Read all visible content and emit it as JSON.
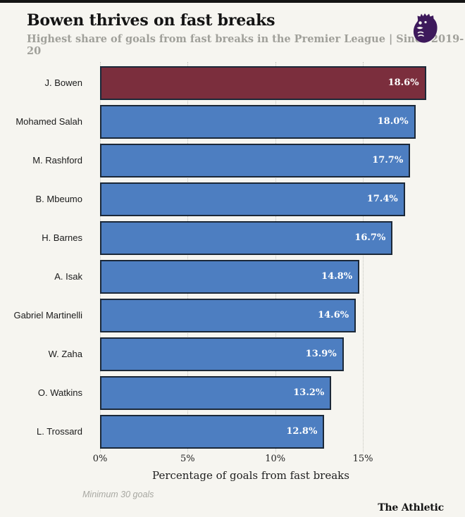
{
  "page": {
    "background_color": "#f6f5f0",
    "top_border_color": "#141414"
  },
  "header": {
    "title": "Bowen thrives on fast breaks",
    "subtitle": "Highest share of goals from fast breaks in the Premier League | Since 2019-20",
    "logo": "premier-league-lion-logo",
    "logo_color": "#3d195b"
  },
  "chart_data": {
    "type": "bar",
    "orientation": "horizontal",
    "title": "Bowen thrives on fast breaks",
    "categories": [
      "J. Bowen",
      "Mohamed Salah",
      "M. Rashford",
      "B. Mbeumo",
      "H. Barnes",
      "A. Isak",
      "Gabriel Martinelli",
      "W. Zaha",
      "O. Watkins",
      "L. Trossard"
    ],
    "values": [
      18.6,
      18.0,
      17.7,
      17.4,
      16.7,
      14.8,
      14.6,
      13.9,
      13.2,
      12.8
    ],
    "value_labels": [
      "18.6%",
      "18.0%",
      "17.7%",
      "17.4%",
      "16.7%",
      "14.8%",
      "14.6%",
      "13.9%",
      "13.2%",
      "12.8%"
    ],
    "xlabel": "Percentage of goals from fast breaks",
    "ylabel": "",
    "xlim": [
      0,
      19.3
    ],
    "xticks": [
      0,
      5,
      10,
      15
    ],
    "xtick_labels": [
      "0%",
      "5%",
      "10%",
      "15%"
    ],
    "grid": "vertical-dotted",
    "legend": "none",
    "highlight_index": 0,
    "colors": {
      "highlight_bar": "#7b2e3d",
      "bar": "#4d7ec1",
      "bar_border": "#1b2838",
      "value_text": "#ffffff",
      "gridline": "#c6c6bf"
    }
  },
  "footer": {
    "note": "Minimum 30 goals",
    "branding": "The Athletic"
  }
}
